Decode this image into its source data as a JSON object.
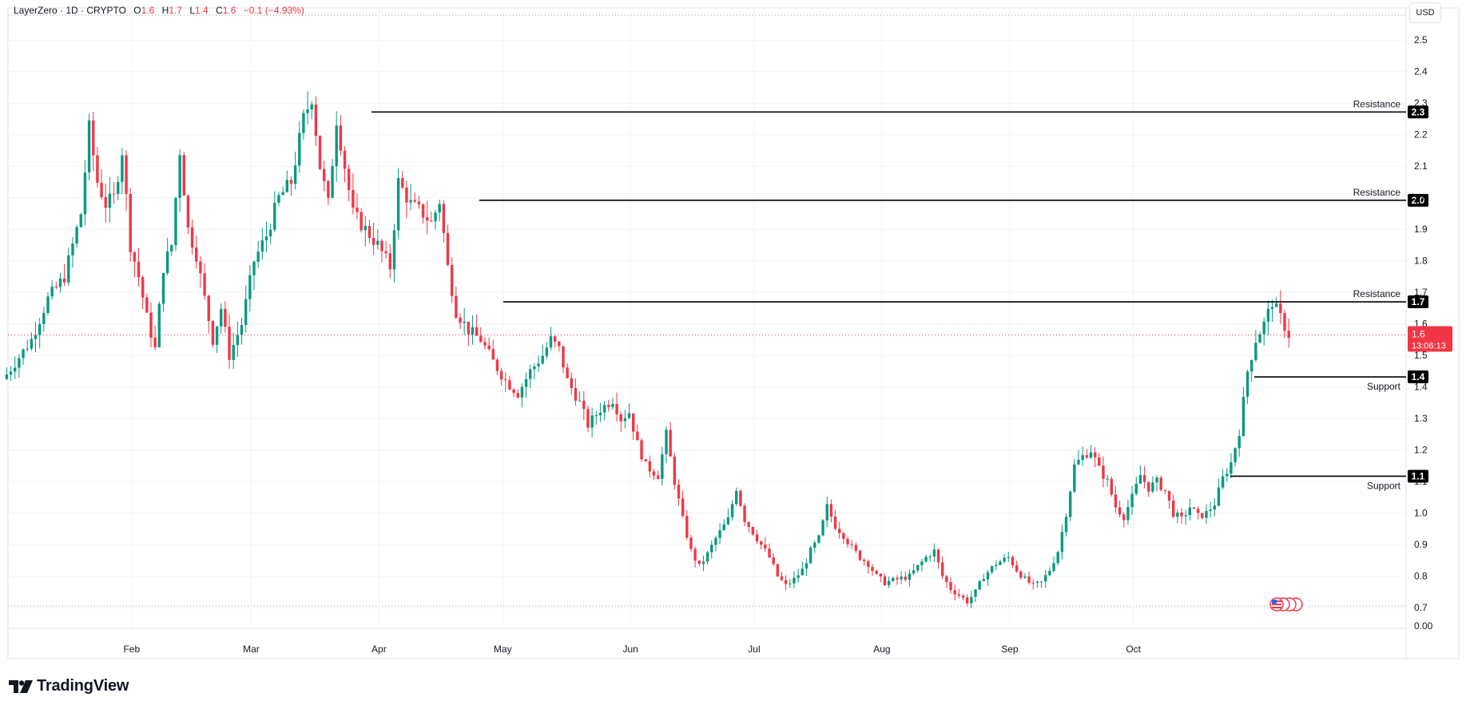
{
  "legend": {
    "symbol": "LayerZero · 1D · CRYPTO",
    "open_label": "O",
    "open": "1.6",
    "high_label": "H",
    "high": "1.7",
    "low_label": "L",
    "low": "1.4",
    "close_label": "C",
    "close": "1.6",
    "change": "−0.1 (−4.93%)"
  },
  "currency": "USD",
  "logo_text": "TradingView",
  "colors": {
    "up": "#089981",
    "down": "#f23645",
    "level_line": "#000000",
    "grid": "#f0f3fa",
    "axis_text": "#131722",
    "price_badge": "#f23645"
  },
  "price_badge": {
    "price": "1.6",
    "countdown": "13:06:13"
  },
  "chart_data": {
    "type": "candlestick",
    "symbol": "LayerZero",
    "interval": "1D",
    "currency": "USD",
    "y_ticks": [
      "0.00",
      "0.7",
      "0.8",
      "0.9",
      "1.0",
      "1.1",
      "1.2",
      "1.3",
      "1.4",
      "1.5",
      "1.6",
      "1.7",
      "1.8",
      "1.9",
      "2.0",
      "2.1",
      "2.2",
      "2.3",
      "2.4",
      "2.5"
    ],
    "x_ticks": [
      "Feb",
      "Mar",
      "Apr",
      "May",
      "Jun",
      "Jul",
      "Aug",
      "Sep",
      "Oct"
    ],
    "levels": [
      {
        "label": "Resistance",
        "value": "2.3",
        "price": 2.272,
        "type": "resistance"
      },
      {
        "label": "Resistance",
        "value": "2.0",
        "price": 1.992,
        "type": "resistance"
      },
      {
        "label": "Resistance",
        "value": "1.7",
        "price": 1.67,
        "type": "resistance"
      },
      {
        "label": "Support",
        "value": "1.4",
        "price": 1.432,
        "type": "support"
      },
      {
        "label": "Support",
        "value": "1.1",
        "price": 1.117,
        "type": "support"
      }
    ],
    "last_price": 1.565,
    "close_path": [
      [
        0,
        1.44
      ],
      [
        6,
        1.55
      ],
      [
        10,
        1.68
      ],
      [
        14,
        1.75
      ],
      [
        18,
        1.95
      ],
      [
        20,
        2.22
      ],
      [
        22,
        2.05
      ],
      [
        24,
        1.98
      ],
      [
        26,
        2.0
      ],
      [
        28,
        2.15
      ],
      [
        30,
        1.85
      ],
      [
        32,
        1.75
      ],
      [
        34,
        1.62
      ],
      [
        36,
        1.52
      ],
      [
        38,
        1.78
      ],
      [
        40,
        1.85
      ],
      [
        42,
        2.15
      ],
      [
        44,
        1.9
      ],
      [
        46,
        1.82
      ],
      [
        48,
        1.68
      ],
      [
        50,
        1.55
      ],
      [
        52,
        1.65
      ],
      [
        54,
        1.5
      ],
      [
        57,
        1.6
      ],
      [
        60,
        1.8
      ],
      [
        63,
        1.88
      ],
      [
        66,
        2.0
      ],
      [
        69,
        2.05
      ],
      [
        72,
        2.25
      ],
      [
        74,
        2.32
      ],
      [
        76,
        2.1
      ],
      [
        78,
        1.98
      ],
      [
        80,
        2.25
      ],
      [
        82,
        2.1
      ],
      [
        84,
        1.95
      ],
      [
        87,
        1.9
      ],
      [
        90,
        1.85
      ],
      [
        93,
        1.78
      ],
      [
        95,
        2.05
      ],
      [
        98,
        1.98
      ],
      [
        101,
        1.95
      ],
      [
        103,
        1.92
      ],
      [
        105,
        1.99
      ],
      [
        107,
        1.78
      ],
      [
        109,
        1.64
      ],
      [
        112,
        1.58
      ],
      [
        115,
        1.55
      ],
      [
        118,
        1.48
      ],
      [
        121,
        1.42
      ],
      [
        124,
        1.38
      ],
      [
        127,
        1.45
      ],
      [
        130,
        1.5
      ],
      [
        132,
        1.55
      ],
      [
        134,
        1.52
      ],
      [
        136,
        1.42
      ],
      [
        139,
        1.35
      ],
      [
        141,
        1.28
      ],
      [
        144,
        1.33
      ],
      [
        147,
        1.36
      ],
      [
        149,
        1.3
      ],
      [
        151,
        1.32
      ],
      [
        153,
        1.22
      ],
      [
        155,
        1.15
      ],
      [
        158,
        1.12
      ],
      [
        160,
        1.25
      ],
      [
        162,
        1.1
      ],
      [
        164,
        0.98
      ],
      [
        166,
        0.88
      ],
      [
        168,
        0.83
      ],
      [
        170,
        0.87
      ],
      [
        172,
        0.92
      ],
      [
        175,
        0.98
      ],
      [
        177,
        1.08
      ],
      [
        179,
        0.98
      ],
      [
        181,
        0.94
      ],
      [
        183,
        0.9
      ],
      [
        185,
        0.86
      ],
      [
        187,
        0.8
      ],
      [
        189,
        0.77
      ],
      [
        191,
        0.79
      ],
      [
        193,
        0.82
      ],
      [
        195,
        0.88
      ],
      [
        197,
        0.92
      ],
      [
        199,
        1.02
      ],
      [
        201,
        0.96
      ],
      [
        203,
        0.93
      ],
      [
        205,
        0.89
      ],
      [
        207,
        0.86
      ],
      [
        209,
        0.84
      ],
      [
        211,
        0.8
      ],
      [
        213,
        0.78
      ],
      [
        216,
        0.79
      ],
      [
        219,
        0.8
      ],
      [
        221,
        0.83
      ],
      [
        223,
        0.86
      ],
      [
        225,
        0.88
      ],
      [
        227,
        0.8
      ],
      [
        229,
        0.76
      ],
      [
        231,
        0.74
      ],
      [
        233,
        0.72
      ],
      [
        235,
        0.75
      ],
      [
        237,
        0.8
      ],
      [
        240,
        0.84
      ],
      [
        243,
        0.86
      ],
      [
        245,
        0.82
      ],
      [
        247,
        0.79
      ],
      [
        249,
        0.77
      ],
      [
        251,
        0.78
      ],
      [
        253,
        0.82
      ],
      [
        255,
        0.88
      ],
      [
        257,
        1.0
      ],
      [
        259,
        1.15
      ],
      [
        261,
        1.18
      ],
      [
        263,
        1.2
      ],
      [
        265,
        1.14
      ],
      [
        267,
        1.1
      ],
      [
        269,
        1.02
      ],
      [
        271,
        0.99
      ],
      [
        273,
        1.05
      ],
      [
        275,
        1.12
      ],
      [
        277,
        1.08
      ],
      [
        279,
        1.1
      ],
      [
        281,
        1.07
      ],
      [
        283,
        1.0
      ],
      [
        285,
        0.98
      ],
      [
        287,
        1.02
      ],
      [
        289,
        0.99
      ],
      [
        291,
        1.0
      ],
      [
        293,
        1.03
      ],
      [
        295,
        1.11
      ],
      [
        297,
        1.16
      ],
      [
        299,
        1.26
      ],
      [
        301,
        1.45
      ],
      [
        303,
        1.55
      ],
      [
        305,
        1.6
      ],
      [
        307,
        1.67
      ],
      [
        309,
        1.62
      ],
      [
        311,
        1.565
      ]
    ]
  }
}
